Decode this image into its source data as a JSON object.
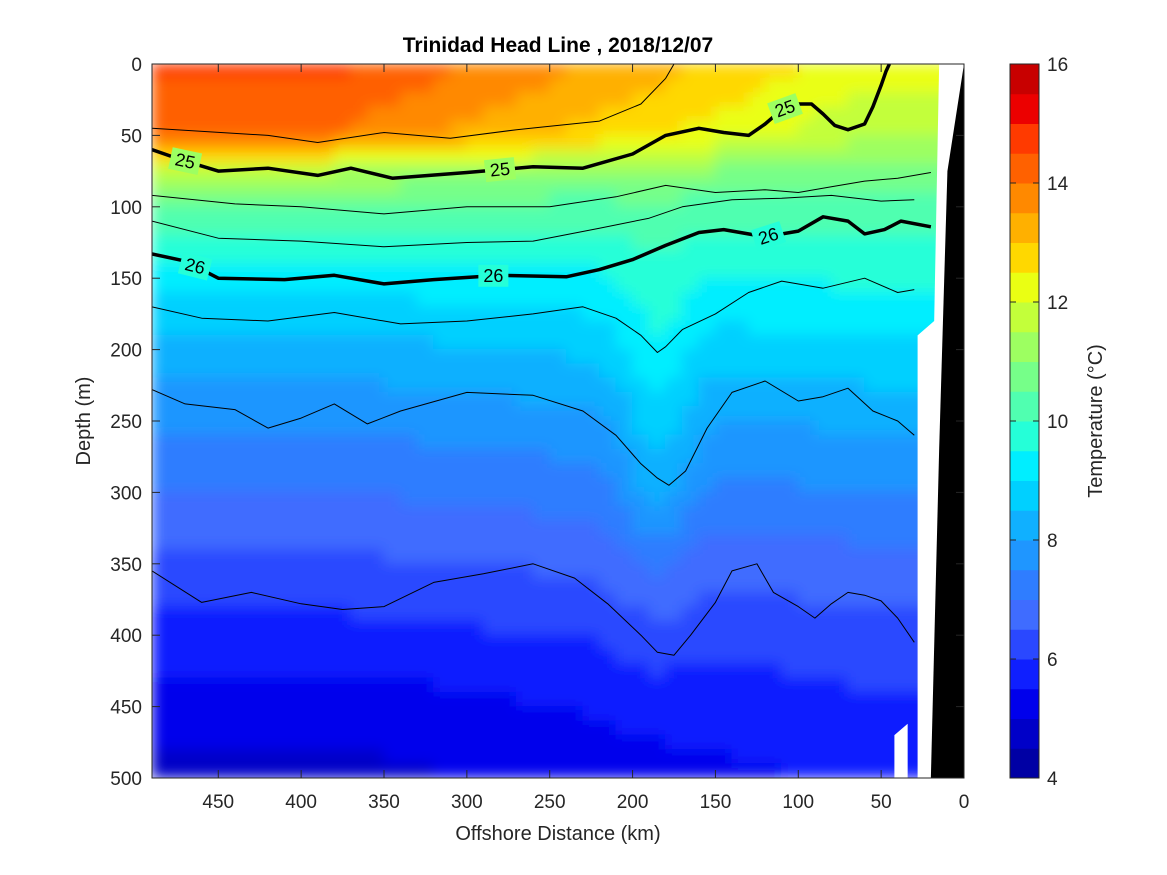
{
  "chart_data": {
    "type": "contour",
    "title": "Trinidad Head Line , 2018/12/07",
    "xlabel": "Offshore Distance (km)",
    "ylabel": "Depth (m)",
    "xlim": [
      490,
      0
    ],
    "ylim": [
      0,
      500
    ],
    "x_reversed": true,
    "y_reversed": true,
    "xticks": [
      450,
      400,
      350,
      300,
      250,
      200,
      150,
      100,
      50,
      0
    ],
    "yticks": [
      0,
      50,
      100,
      150,
      200,
      250,
      300,
      350,
      400,
      450,
      500
    ],
    "colorbar": {
      "label": "Temperature (°C)",
      "clim": [
        4,
        16
      ],
      "ticks": [
        4,
        6,
        8,
        10,
        12,
        14,
        16
      ],
      "levels": [
        4,
        4.5,
        5,
        5.5,
        6,
        6.5,
        7,
        7.5,
        8,
        8.5,
        9,
        9.5,
        10,
        10.5,
        11,
        11.5,
        12,
        12.5,
        13,
        13.5,
        14,
        14.5,
        15,
        15.5,
        16
      ],
      "colors": [
        "#0000a4",
        "#0000c8",
        "#0000ec",
        "#0f1fff",
        "#2a48ff",
        "#3f6cff",
        "#2f7dff",
        "#1f96ff",
        "#10b0ff",
        "#00d0ff",
        "#00eeff",
        "#25ffd8",
        "#50ffb0",
        "#76ff89",
        "#9dff61",
        "#c3ff3a",
        "#eaff13",
        "#ffd800",
        "#ffb000",
        "#ff8900",
        "#ff6100",
        "#ff3a00",
        "#ec0000",
        "#c80000"
      ]
    },
    "temperature_profile": {
      "depth": [
        0,
        50,
        75,
        100,
        150,
        200,
        250,
        300,
        350,
        400,
        450,
        500
      ],
      "temp_offshore": [
        14.6,
        14.0,
        11.5,
        10.4,
        9.2,
        8.3,
        7.6,
        7.0,
        6.4,
        5.8,
        5.2,
        4.8
      ],
      "temp_onshore": [
        12.3,
        11.6,
        10.8,
        10.2,
        9.6,
        8.9,
        8.1,
        7.5,
        6.8,
        6.3,
        5.9,
        5.6
      ]
    },
    "density_contours": [
      {
        "level": 25,
        "label": "25",
        "style": "bold",
        "x": [
          490,
          470,
          450,
          420,
          390,
          370,
          345,
          300,
          260,
          230,
          200,
          180,
          160,
          145,
          130,
          120,
          110,
          100,
          92,
          85,
          78,
          70,
          60,
          55,
          50,
          47,
          45
        ],
        "y": [
          60,
          68,
          75,
          73,
          78,
          73,
          80,
          76,
          72,
          73,
          63,
          50,
          45,
          48,
          50,
          42,
          32,
          28,
          28,
          35,
          43,
          46,
          42,
          30,
          15,
          5,
          0
        ]
      },
      {
        "level": 26,
        "label": "26",
        "style": "bold",
        "x": [
          490,
          470,
          450,
          410,
          380,
          350,
          320,
          280,
          240,
          220,
          200,
          180,
          160,
          145,
          120,
          100,
          85,
          70,
          60,
          48,
          38,
          20
        ],
        "y": [
          133,
          138,
          150,
          151,
          148,
          154,
          151,
          148,
          149,
          144,
          137,
          127,
          118,
          116,
          121,
          117,
          107,
          110,
          119,
          116,
          110,
          114
        ]
      },
      {
        "level": 24.5,
        "style": "thin",
        "x": [
          490,
          420,
          390,
          350,
          310,
          270,
          220,
          195,
          180,
          175
        ],
        "y": [
          45,
          50,
          55,
          48,
          52,
          46,
          40,
          28,
          10,
          0
        ]
      },
      {
        "level": 25.4,
        "style": "thin",
        "x": [
          490,
          440,
          400,
          350,
          300,
          250,
          210,
          180,
          150,
          120,
          100,
          80,
          60,
          40,
          20
        ],
        "y": [
          92,
          98,
          100,
          105,
          100,
          100,
          93,
          85,
          90,
          88,
          90,
          86,
          82,
          80,
          76
        ]
      },
      {
        "level": 25.8,
        "style": "thin",
        "x": [
          490,
          450,
          400,
          350,
          300,
          260,
          220,
          190,
          170,
          140,
          110,
          80,
          50,
          30
        ],
        "y": [
          110,
          122,
          124,
          128,
          125,
          124,
          115,
          108,
          100,
          95,
          94,
          92,
          96,
          95
        ]
      },
      {
        "level": 26.3,
        "style": "thin",
        "x": [
          490,
          460,
          420,
          380,
          340,
          300,
          260,
          230,
          210,
          195,
          185,
          180,
          170,
          150,
          130,
          110,
          85,
          60,
          40,
          30
        ],
        "y": [
          170,
          178,
          180,
          174,
          182,
          180,
          175,
          170,
          178,
          190,
          202,
          198,
          186,
          175,
          160,
          152,
          157,
          150,
          160,
          158
        ]
      },
      {
        "level": 26.6,
        "style": "thin",
        "x": [
          490,
          470,
          440,
          420,
          400,
          380,
          360,
          340,
          300,
          260,
          230,
          210,
          195,
          185,
          178,
          168,
          155,
          140,
          120,
          100,
          85,
          70,
          55,
          40,
          30
        ],
        "y": [
          228,
          238,
          242,
          255,
          248,
          238,
          252,
          243,
          230,
          232,
          243,
          260,
          280,
          290,
          295,
          285,
          255,
          230,
          222,
          236,
          233,
          227,
          243,
          250,
          260
        ]
      },
      {
        "level": 26.8,
        "style": "thin",
        "x": [
          490,
          460,
          430,
          400,
          375,
          350,
          320,
          290,
          260,
          235,
          215,
          195,
          185,
          175,
          165,
          150,
          140,
          125,
          115,
          100,
          90,
          80,
          70,
          60,
          50,
          40,
          30
        ],
        "y": [
          355,
          377,
          370,
          378,
          382,
          380,
          363,
          357,
          350,
          360,
          378,
          400,
          412,
          414,
          400,
          377,
          355,
          350,
          370,
          380,
          388,
          378,
          370,
          372,
          376,
          388,
          405
        ]
      }
    ],
    "bottom": {
      "x": [
        20,
        15,
        10,
        0
      ],
      "y": [
        500,
        270,
        75,
        0
      ]
    }
  }
}
